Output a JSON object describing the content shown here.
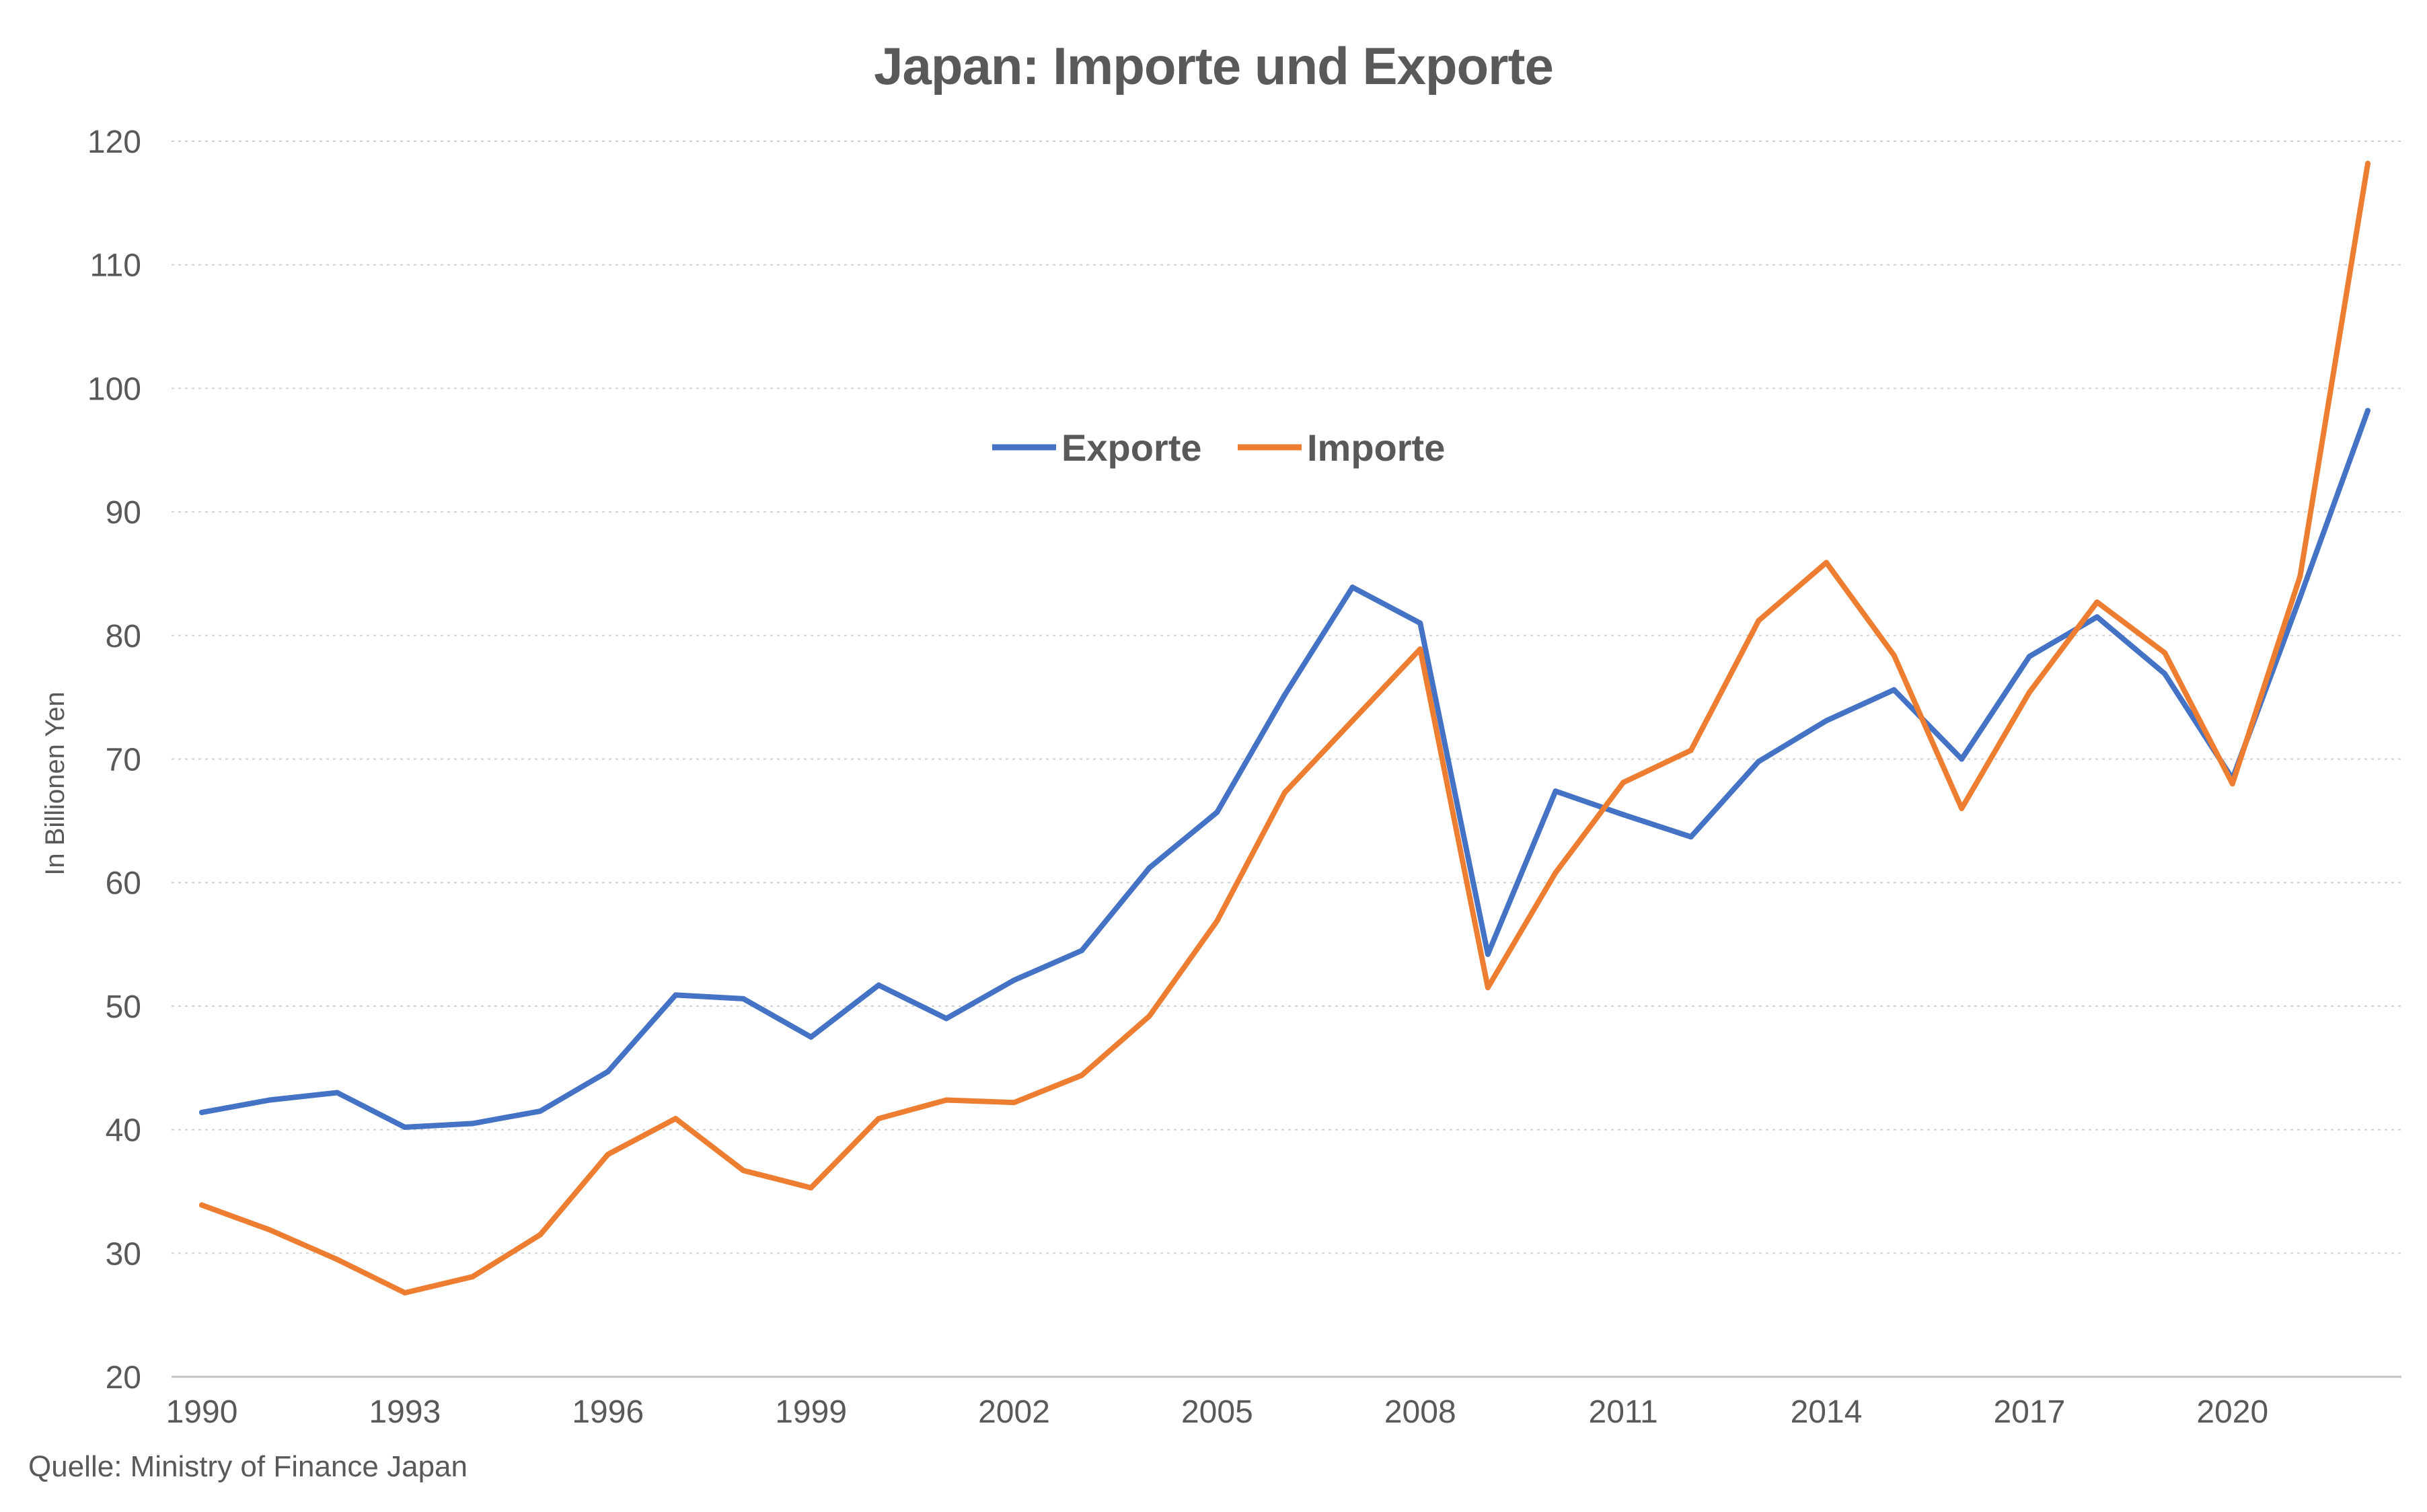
{
  "chart_data": {
    "type": "line",
    "title": "Japan: Importe und Exporte",
    "ylabel": "In Billionen Yen",
    "xlabel": "",
    "source": "Quelle: Ministry of Finance Japan",
    "ylim": [
      20,
      120
    ],
    "yticks": [
      20,
      30,
      40,
      50,
      60,
      70,
      80,
      90,
      100,
      110,
      120
    ],
    "x": [
      1990,
      1991,
      1992,
      1993,
      1994,
      1995,
      1996,
      1997,
      1998,
      1999,
      2000,
      2001,
      2002,
      2003,
      2004,
      2005,
      2006,
      2007,
      2008,
      2009,
      2010,
      2011,
      2012,
      2013,
      2014,
      2015,
      2016,
      2017,
      2018,
      2019,
      2020,
      2021,
      2022
    ],
    "xticks": [
      1990,
      1993,
      1996,
      1999,
      2002,
      2005,
      2008,
      2011,
      2014,
      2017,
      2020
    ],
    "grid": true,
    "legend_position": "top-center",
    "series": [
      {
        "name": "Exporte",
        "color": "#4472c4",
        "values": [
          41.4,
          42.4,
          43.0,
          40.2,
          40.5,
          41.5,
          44.7,
          50.9,
          50.6,
          47.5,
          51.7,
          49.0,
          52.1,
          54.5,
          61.2,
          65.7,
          75.2,
          83.9,
          81.0,
          54.2,
          67.4,
          65.5,
          63.7,
          69.8,
          73.1,
          75.6,
          70.0,
          78.3,
          81.5,
          76.9,
          68.4,
          83.1,
          98.2
        ]
      },
      {
        "name": "Importe",
        "color": "#ed7d31",
        "values": [
          33.9,
          31.9,
          29.5,
          26.8,
          28.1,
          31.5,
          38.0,
          40.9,
          36.7,
          35.3,
          40.9,
          42.4,
          42.2,
          44.4,
          49.2,
          56.9,
          67.3,
          73.1,
          78.9,
          51.5,
          60.8,
          68.1,
          70.7,
          81.2,
          85.9,
          78.4,
          66.0,
          75.4,
          82.7,
          78.6,
          68.0,
          84.8,
          118.2
        ]
      }
    ]
  }
}
